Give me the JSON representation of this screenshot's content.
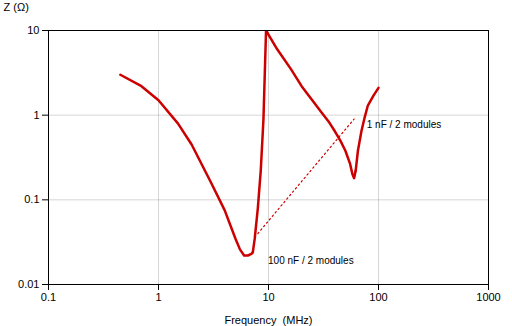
{
  "chart_data": {
    "type": "line",
    "log": true,
    "grid": true,
    "xlabel": "Frequency  (MHz)",
    "ylabel": "Z (Ω)",
    "xlim": [
      0.1,
      1000
    ],
    "ylim": [
      0.01,
      10
    ],
    "xticks": [
      0.1,
      1,
      10,
      100,
      1000
    ],
    "yticks": [
      0.01,
      0.1,
      1,
      10
    ],
    "series": [
      {
        "color": "#cc0000",
        "line_style": "solid",
        "x": [
          0.45,
          0.7,
          1.0,
          1.5,
          2.0,
          3.0,
          4.0,
          5.0,
          5.5,
          6.0,
          6.5,
          7.0,
          7.2
        ],
        "values": [
          3.0,
          2.2,
          1.5,
          0.8,
          0.45,
          0.16,
          0.075,
          0.035,
          0.026,
          0.022,
          0.022,
          0.023,
          0.024
        ]
      },
      {
        "color": "#cc0000",
        "line_style": "solid",
        "x": [
          7.2,
          7.5,
          8.0,
          8.5,
          9.0,
          9.5
        ],
        "values": [
          0.024,
          0.035,
          0.08,
          0.22,
          0.9,
          10.0
        ]
      },
      {
        "color": "#cc0000",
        "line_style": "solid",
        "x": [
          9.5,
          12,
          16,
          20,
          25,
          30,
          35,
          40,
          45,
          50,
          55,
          58,
          60,
          62
        ],
        "values": [
          10.0,
          6.0,
          3.5,
          2.2,
          1.5,
          1.1,
          0.85,
          0.65,
          0.5,
          0.38,
          0.27,
          0.2,
          0.18,
          0.22
        ]
      },
      {
        "color": "#cc0000",
        "line_style": "solid",
        "x": [
          62,
          65,
          70,
          75,
          80,
          90,
          100
        ],
        "values": [
          0.22,
          0.38,
          0.65,
          0.95,
          1.3,
          1.7,
          2.1
        ]
      },
      {
        "color": "#cc0000",
        "line_style": "dotted",
        "x": [
          8.0,
          60
        ],
        "values": [
          0.04,
          0.9
        ]
      }
    ],
    "annotations": [
      {
        "text": "100 nF / 2 modules",
        "x": 9.5,
        "y": 0.021
      },
      {
        "text": "1 nF / 2 modules",
        "x": 75,
        "y": 0.85
      }
    ]
  }
}
